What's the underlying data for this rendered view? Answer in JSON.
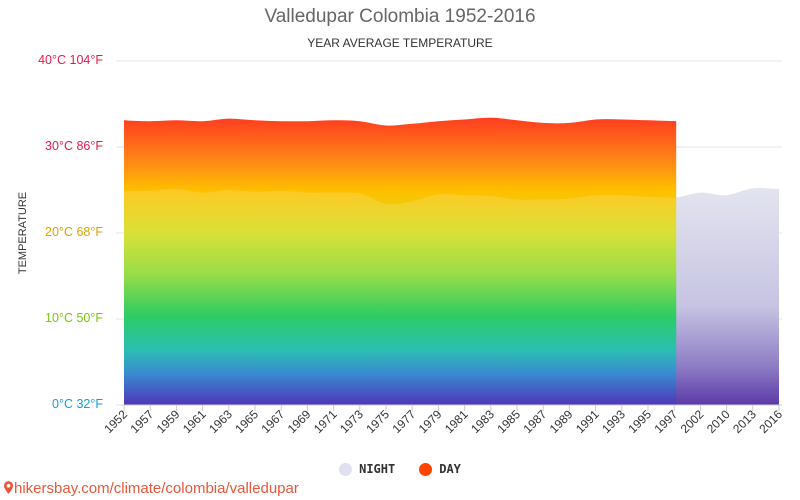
{
  "chart_data": {
    "type": "area",
    "title": "Valledupar Colombia 1952-2016",
    "subtitle": "YEAR AVERAGE TEMPERATURE",
    "ylabel": "TEMPERATURE",
    "ylim": [
      0,
      40
    ],
    "y_ticks": [
      {
        "value": 40,
        "label": "40°C 104°F",
        "color": "#e6194b"
      },
      {
        "value": 30,
        "label": "30°C 86°F",
        "color": "#e6194b"
      },
      {
        "value": 20,
        "label": "20°C 68°F",
        "color": "#d9a400"
      },
      {
        "value": 10,
        "label": "10°C 50°F",
        "color": "#7ac70c"
      },
      {
        "value": 0,
        "label": "0°C 32°F",
        "color": "#1a9bd7"
      }
    ],
    "categories": [
      "1952",
      "1957",
      "1959",
      "1961",
      "1963",
      "1965",
      "1967",
      "1969",
      "1971",
      "1973",
      "1975",
      "1977",
      "1979",
      "1981",
      "1983",
      "1985",
      "1987",
      "1989",
      "1991",
      "1993",
      "1995",
      "1997",
      "2002",
      "2010",
      "2013",
      "2016"
    ],
    "series": [
      {
        "name": "NIGHT",
        "color": "#e0e1ee",
        "values": [
          24.9,
          24.9,
          25.1,
          24.7,
          25.0,
          24.8,
          24.9,
          24.7,
          24.7,
          24.6,
          23.4,
          23.7,
          24.5,
          24.4,
          24.3,
          23.9,
          23.9,
          24.0,
          24.4,
          24.4,
          24.2,
          24.1,
          24.7,
          24.4,
          25.2,
          25.1
        ]
      },
      {
        "name": "DAY",
        "color": "#ff4500",
        "values": [
          33.1,
          33.0,
          33.1,
          33.0,
          33.3,
          33.1,
          33.0,
          33.0,
          33.1,
          33.0,
          32.5,
          32.7,
          33.0,
          33.2,
          33.4,
          33.1,
          32.8,
          32.8,
          33.2,
          33.2,
          33.1,
          33.0,
          null,
          null,
          null,
          null
        ]
      }
    ],
    "legend_position": "bottom",
    "grid": true
  },
  "source_text": "hikersbay.com/climate/colombia/valledupar",
  "icons": {
    "source": "location-pin-icon"
  }
}
